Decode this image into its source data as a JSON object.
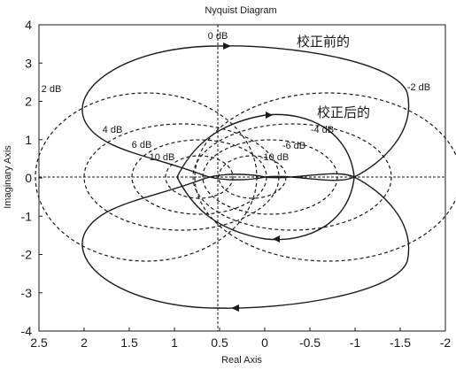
{
  "chart_data": {
    "type": "line",
    "title": "Nyquist Diagram",
    "xlabel": "Real Axis",
    "ylabel": "Imaginary Axis",
    "xlim": [
      2.5,
      -2
    ],
    "ylim": [
      -4,
      4
    ],
    "grid": false,
    "x_ticks": [
      "2.5",
      "2",
      "1.5",
      "1",
      "0.5",
      "0",
      "-0.5",
      "-1",
      "-1.5",
      "-2"
    ],
    "y_ticks": [
      "4",
      "3",
      "2",
      "1",
      "0",
      "-1",
      "-2",
      "-3",
      "-4"
    ],
    "annotations": [
      "0 dB",
      "2 dB",
      "-2 dB",
      "4 dB",
      "-4 dB",
      "6 dB",
      "-6 dB",
      "10 dB",
      "-10 dB"
    ],
    "series": [
      {
        "name": "校正前的"
      },
      {
        "name": "校正后的"
      }
    ]
  },
  "colors": {
    "axes": "#1a1a1a",
    "curve": "#1a1a1a",
    "grid_circles": "#1a1a1a",
    "background": "#ffffff"
  }
}
